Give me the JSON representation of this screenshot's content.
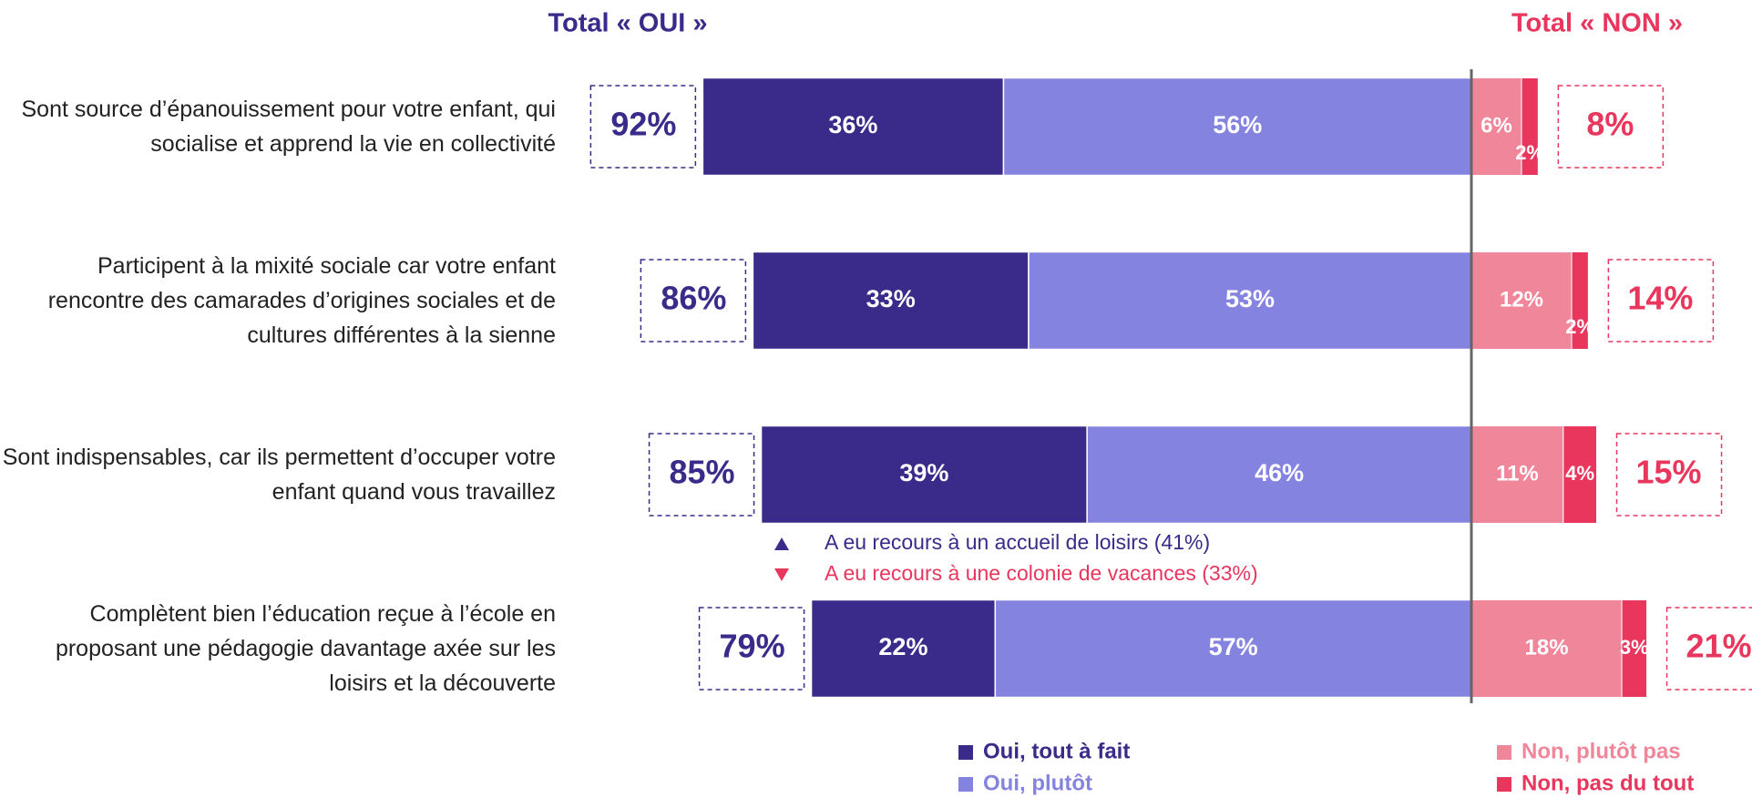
{
  "chart_data": {
    "type": "diverging_bar",
    "title_left": "Total « OUI »",
    "title_right": "Total « NON »",
    "categories": [
      "Sont source d’épanouissement pour votre enfant, qui socialise et apprend la vie en collectivité",
      "Participent à la mixité sociale car votre enfant rencontre des camarades d’origines sociales et de cultures différentes à la sienne",
      "Sont indispensables, car ils permettent d’occuper votre enfant quand vous travaillez",
      "Complètent bien l’éducation reçue à l’école en proposant une pédagogie davantage axée sur les loisirs et la découverte"
    ],
    "series": [
      {
        "name": "Oui, tout à fait",
        "color": "#3a2a8a",
        "side": "left",
        "values": [
          36,
          33,
          39,
          22
        ],
        "value_labels": [
          "36%",
          "33%",
          "39%",
          "22%"
        ]
      },
      {
        "name": "Oui, plutôt",
        "color": "#8484e0",
        "side": "left",
        "values": [
          56,
          53,
          46,
          57
        ],
        "value_labels": [
          "56%",
          "53%",
          "46%",
          "57%"
        ]
      },
      {
        "name": "Non, plutôt pas",
        "color": "#f0869a",
        "side": "right",
        "values": [
          6,
          12,
          11,
          18
        ],
        "value_labels": [
          "6%",
          "12%",
          "11%",
          "18%"
        ]
      },
      {
        "name": "Non, pas du tout",
        "color": "#e8365d",
        "side": "right",
        "values": [
          2,
          2,
          4,
          3
        ],
        "value_labels": [
          "2%",
          "2%",
          "4%",
          "3%"
        ]
      }
    ],
    "totals_left": {
      "color": "#3a2a8a",
      "values": [
        92,
        86,
        85,
        79
      ],
      "value_labels": [
        "92%",
        "86%",
        "85%",
        "79%"
      ]
    },
    "totals_right": {
      "color": "#e8365d",
      "values": [
        8,
        14,
        15,
        21
      ],
      "value_labels": [
        "8%",
        "14%",
        "15%",
        "21%"
      ]
    },
    "annotations": [
      {
        "text": "A eu recours à un accueil de loisirs (41%)",
        "color": "#3a2a8a",
        "marker": "up"
      },
      {
        "text": "A eu recours à une colonie de vacances (33%)",
        "color": "#e8365d",
        "marker": "down"
      }
    ]
  }
}
